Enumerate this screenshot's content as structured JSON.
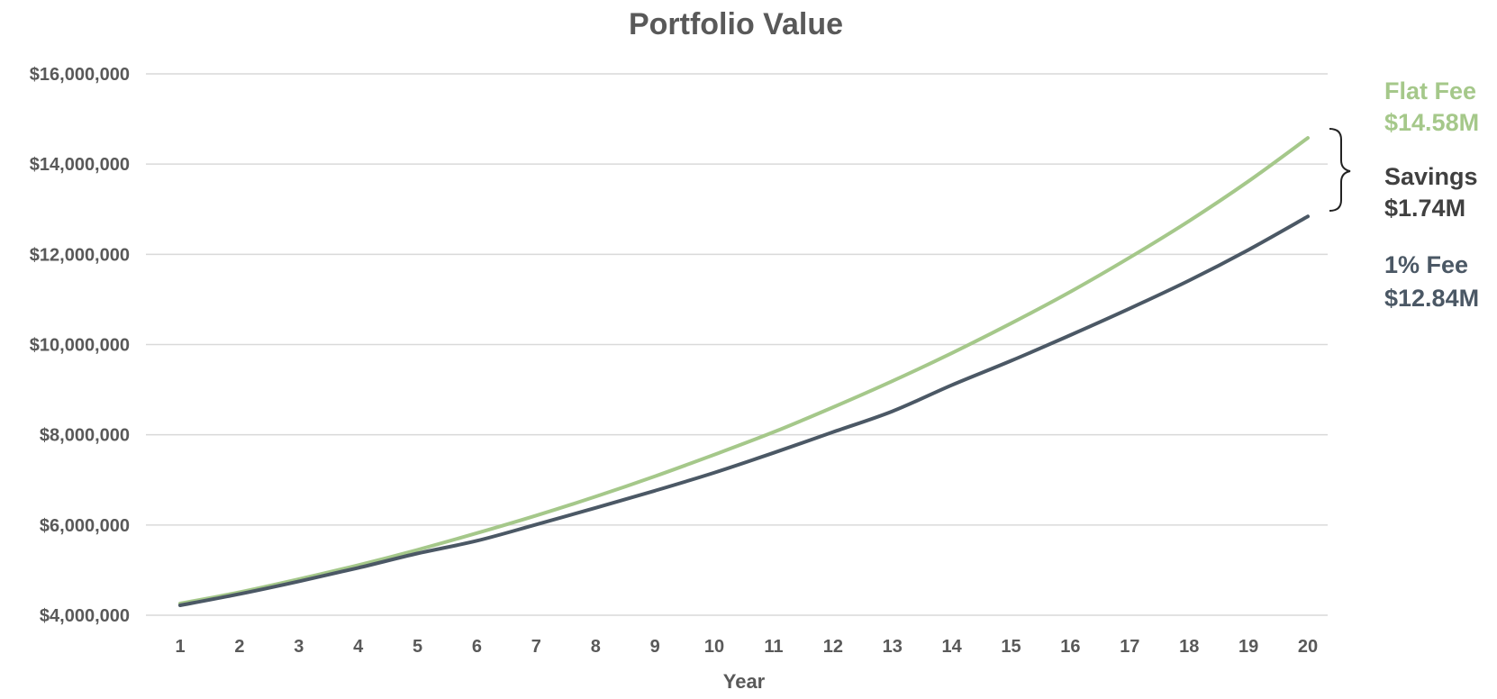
{
  "chart_data": {
    "type": "line",
    "title": "Portfolio Value",
    "xlabel": "Year",
    "ylabel": "",
    "x": [
      1,
      2,
      3,
      4,
      5,
      6,
      7,
      8,
      9,
      10,
      11,
      12,
      13,
      14,
      15,
      16,
      17,
      18,
      19,
      20
    ],
    "ylim": [
      4000000,
      16000000
    ],
    "yticks": [
      4000000,
      6000000,
      8000000,
      10000000,
      12000000,
      14000000,
      16000000
    ],
    "ytick_labels": [
      "$4,000,000",
      "$6,000,000",
      "$8,000,000",
      "$10,000,000",
      "$12,000,000",
      "$14,000,000",
      "$16,000,000"
    ],
    "grid": true,
    "legend": "none",
    "series": [
      {
        "name": "Flat Fee",
        "color": "#a5c88a",
        "values": [
          4260000,
          4510000,
          4800000,
          5110000,
          5450000,
          5820000,
          6210000,
          6630000,
          7080000,
          7560000,
          8060000,
          8610000,
          9190000,
          9810000,
          10470000,
          11170000,
          11930000,
          12740000,
          13620000,
          14580000
        ]
      },
      {
        "name": "1% Fee",
        "color": "#4b5865",
        "values": [
          4220000,
          4470000,
          4750000,
          5050000,
          5370000,
          5650000,
          6010000,
          6380000,
          6760000,
          7160000,
          7600000,
          8060000,
          8520000,
          9100000,
          9640000,
          10210000,
          10800000,
          11420000,
          12100000,
          12840000
        ]
      }
    ],
    "annotations": [
      {
        "id": "flat",
        "line1": "Flat Fee",
        "line2": "$14.58M",
        "color": "#a5c88a"
      },
      {
        "id": "savings",
        "line1": "Savings",
        "line2": "$1.74M",
        "color": "#404040"
      },
      {
        "id": "pct",
        "line1": "1% Fee",
        "line2": "$12.84M",
        "color": "#4b5865"
      }
    ]
  }
}
